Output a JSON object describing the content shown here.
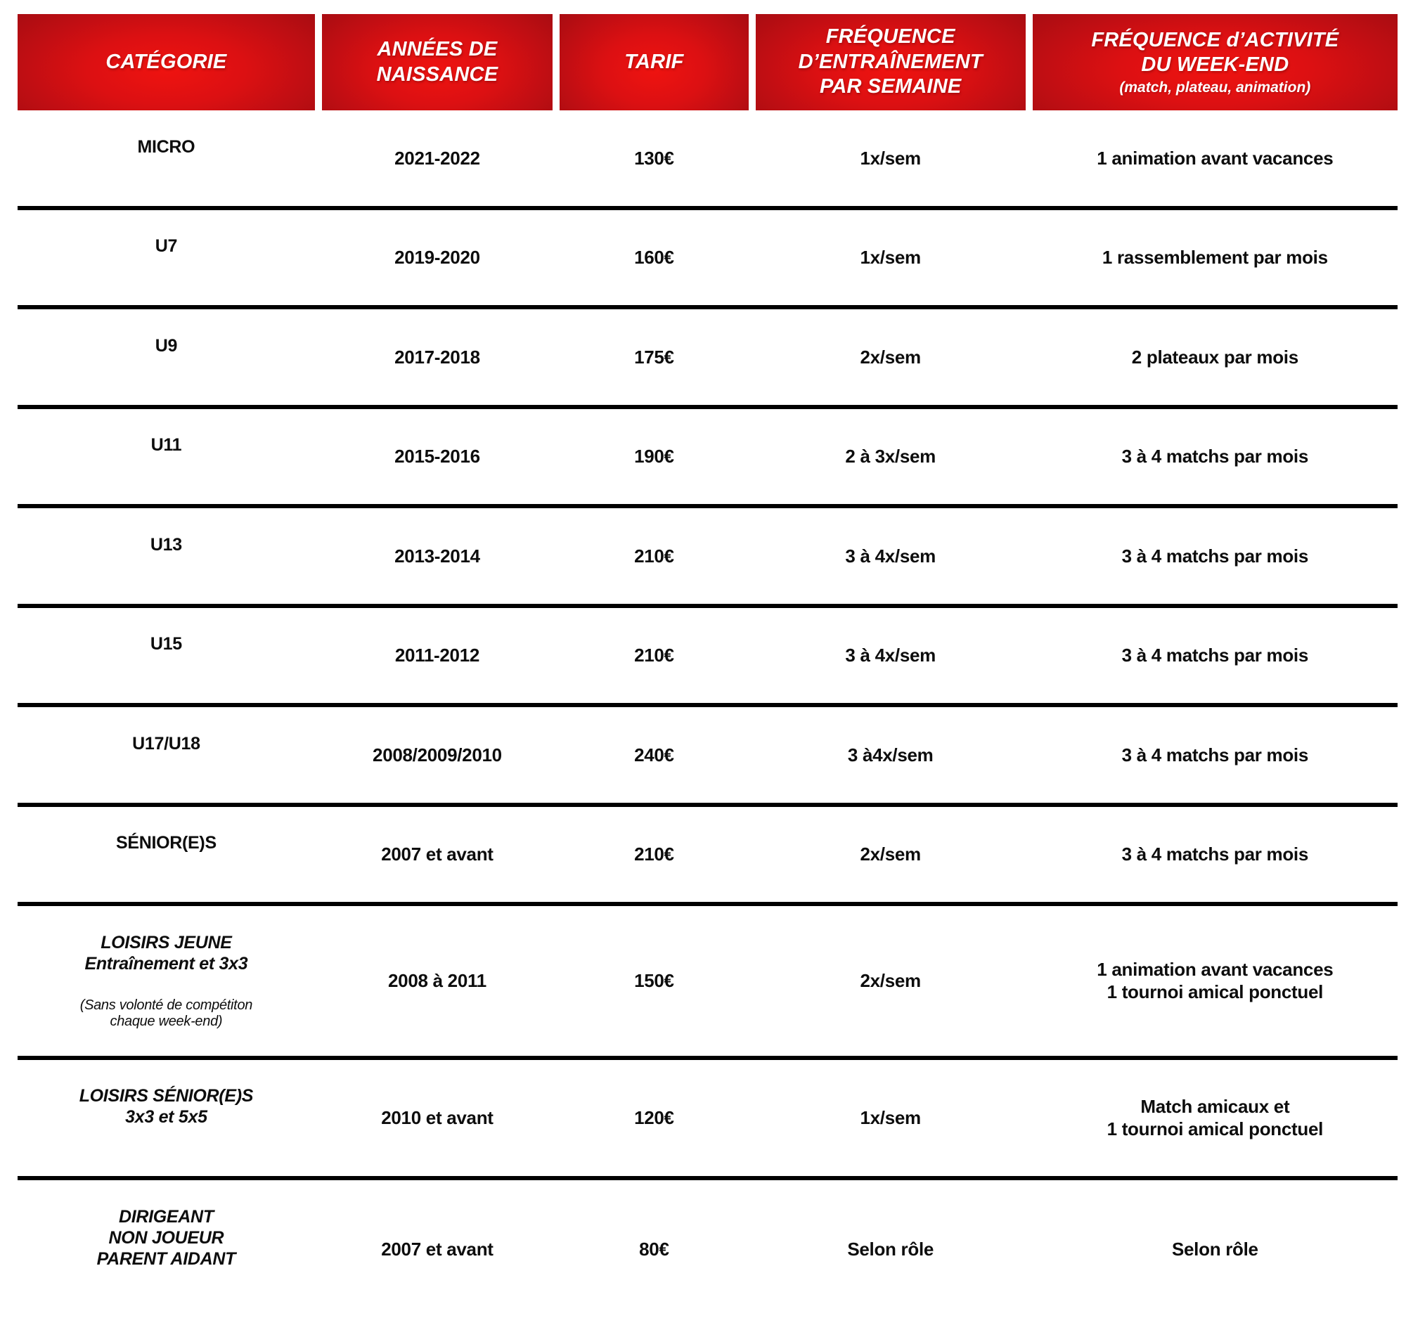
{
  "colors": {
    "header_red_center": "#ef1310",
    "header_red_edge": "#a30c11",
    "header_text": "#ffffff",
    "body_text": "#0d0d0d",
    "separator": "#000000"
  },
  "table": {
    "columns": [
      {
        "label": "CATÉGORIE",
        "sublabel": ""
      },
      {
        "label": "ANNÉES DE\nNAISSANCE",
        "sublabel": ""
      },
      {
        "label": "TARIF",
        "sublabel": ""
      },
      {
        "label": "FRÉQUENCE\nD’ENTRAÎNEMENT\nPAR SEMAINE",
        "sublabel": ""
      },
      {
        "label": "FRÉQUENCE d’ACTIVITÉ\nDU WEEK-END",
        "sublabel": "(match, plateau, animation)"
      }
    ],
    "rows": [
      {
        "category": "MICRO",
        "category_note": "",
        "category_italic": false,
        "years": "2021-2022",
        "tarif": "130€",
        "training": "1x/sem",
        "weekend": "1 animation avant vacances"
      },
      {
        "category": "U7",
        "category_note": "",
        "category_italic": false,
        "years": "2019-2020",
        "tarif": "160€",
        "training": "1x/sem",
        "weekend": "1 rassemblement par mois"
      },
      {
        "category": "U9",
        "category_note": "",
        "category_italic": false,
        "years": "2017-2018",
        "tarif": "175€",
        "training": "2x/sem",
        "weekend": "2 plateaux par mois"
      },
      {
        "category": "U11",
        "category_note": "",
        "category_italic": false,
        "years": "2015-2016",
        "tarif": "190€",
        "training": "2 à 3x/sem",
        "weekend": "3 à 4 matchs par mois"
      },
      {
        "category": "U13",
        "category_note": "",
        "category_italic": false,
        "years": "2013-2014",
        "tarif": "210€",
        "training": "3 à 4x/sem",
        "weekend": "3 à 4 matchs par mois"
      },
      {
        "category": "U15",
        "category_note": "",
        "category_italic": false,
        "years": "2011-2012",
        "tarif": "210€",
        "training": "3 à 4x/sem",
        "weekend": "3 à 4 matchs par mois"
      },
      {
        "category": "U17/U18",
        "category_note": "",
        "category_italic": false,
        "years": "2008/2009/2010",
        "tarif": "240€",
        "training": "3 à4x/sem",
        "weekend": "3 à 4 matchs par mois"
      },
      {
        "category": "SÉNIOR(E)S",
        "category_note": "",
        "category_italic": false,
        "years": "2007 et avant",
        "tarif": "210€",
        "training": "2x/sem",
        "weekend": "3 à 4 matchs par mois"
      },
      {
        "category": "LOISIRS JEUNE\nEntraînement et 3x3",
        "category_note": "(Sans volonté de compétiton\nchaque week-end)",
        "category_italic": true,
        "years": "2008 à 2011",
        "tarif": "150€",
        "training": "2x/sem",
        "weekend": "1 animation avant vacances\n1 tournoi amical ponctuel"
      },
      {
        "category": "LOISIRS SÉNIOR(E)S\n3x3 et 5x5",
        "category_note": "",
        "category_italic": true,
        "years": "2010 et avant",
        "tarif": "120€",
        "training": "1x/sem",
        "weekend": "Match amicaux et\n1 tournoi amical ponctuel"
      },
      {
        "category": "DIRIGEANT\nNON JOUEUR\nPARENT AIDANT",
        "category_note": "",
        "category_italic": true,
        "years": "2007 et avant",
        "tarif": "80€",
        "training": "Selon rôle",
        "weekend": "Selon rôle"
      }
    ]
  }
}
